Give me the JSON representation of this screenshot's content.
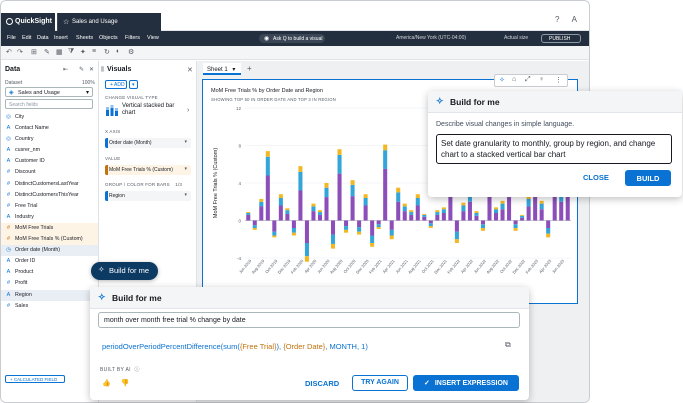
{
  "app": {
    "brand": "QuickSight",
    "analysis_tab": "Sales and Usage",
    "topbar_icons": [
      "help-icon",
      "account-icon"
    ]
  },
  "menu": {
    "items": [
      "File",
      "Edit",
      "Data",
      "Insert",
      "Sheets",
      "Objects",
      "Filters",
      "View"
    ],
    "ask_q": "Ask Q to build a visual",
    "timezone": "America/New York (UTC-04:00)",
    "actual_size": "Actual size",
    "publish": "PUBLISH"
  },
  "data_panel": {
    "title": "Data",
    "dataset_label": "Dataset",
    "dataset_pct": "100%",
    "dataset": "Sales and Usage",
    "search_placeholder": "Search fields",
    "fields": [
      {
        "name": "City",
        "icon": "geo"
      },
      {
        "name": "Contact Name",
        "icon": "str"
      },
      {
        "name": "Country",
        "icon": "geo"
      },
      {
        "name": "cusrer_nm",
        "icon": "str"
      },
      {
        "name": "Customer ID",
        "icon": "str"
      },
      {
        "name": "Discount",
        "icon": "num"
      },
      {
        "name": "DistinctCustomersLastYear",
        "icon": "num"
      },
      {
        "name": "DistinctCustomersThisYear",
        "icon": "num"
      },
      {
        "name": "Free Trial",
        "icon": "num"
      },
      {
        "name": "Industry",
        "icon": "str"
      },
      {
        "name": "MoM Free Trials",
        "icon": "calc",
        "highlight": true
      },
      {
        "name": "MoM Free Trials % (Custom)",
        "icon": "calc",
        "highlight": true
      },
      {
        "name": "Order date (Month)",
        "icon": "date",
        "selected": true
      },
      {
        "name": "Order ID",
        "icon": "str"
      },
      {
        "name": "Product",
        "icon": "str"
      },
      {
        "name": "Profit",
        "icon": "num"
      },
      {
        "name": "Region",
        "icon": "str",
        "selected": true
      },
      {
        "name": "Sales",
        "icon": "num"
      }
    ],
    "add_calc": "+ CALCULATED FIELD"
  },
  "visuals_panel": {
    "title": "Visuals",
    "add": "+ ADD",
    "change_type_label": "CHANGE VISUAL TYPE",
    "visual_type": "Vertical stacked bar chart",
    "x_axis_label": "X AXIS",
    "x_axis_value": "Order date (Month)",
    "value_label": "VALUE",
    "value_value": "MoM Free Trials % (Custom)",
    "group_label": "GROUP / COLOR FOR BARS",
    "group_count": "1/3",
    "group_value": "Region"
  },
  "canvas": {
    "sheet_tab": "Sheet 1",
    "visual_title": "MoM Free Trials % by Order Date and Region",
    "visual_subtitle": "SHOWING TOP 50 IN ORDER DATE AND TOP 3 IN REGION"
  },
  "chart_data": {
    "type": "bar",
    "stacked": true,
    "ylabel": "MoM Free Trials % (Custom)",
    "ylim": [
      -4,
      12
    ],
    "yticks": [
      -4,
      0,
      4,
      8,
      12
    ],
    "x_tick_labels": [
      "Jun 2019",
      "Aug 2019",
      "Oct 2019",
      "Dec 2019",
      "Feb 2020",
      "Apr 2020",
      "Jun 2020",
      "Aug 2020",
      "Oct 2020",
      "Dec 2020",
      "Feb 2021",
      "Apr 2021",
      "Jun 2021",
      "Aug 2021",
      "Oct 2021",
      "Dec 2021",
      "Feb 2022",
      "Apr 2022",
      "Jun 2022",
      "Aug 2022",
      "Oct 2022",
      "Dec 2022",
      "Feb 2023",
      "Apr 2023",
      "Jun 2023"
    ],
    "series": [
      {
        "color": "#8c4fb9",
        "values": [
          0.6,
          -0.5,
          1.5,
          4.8,
          -1.2,
          1.6,
          0.7,
          -0.8,
          3.2,
          -2.4,
          1.0,
          0.6,
          2.5,
          -1.5,
          5.0,
          -0.6,
          2.6,
          -0.7,
          1.6,
          -1.6,
          -0.4,
          5.5,
          -1.0,
          2.0,
          1.0,
          0.6,
          1.6,
          0.4,
          -0.3,
          0.6,
          0.8,
          6.2,
          -1.2,
          1.0,
          2.0,
          0.5,
          -0.4,
          5.6,
          0.8,
          1.2,
          2.5,
          -0.4,
          0.3,
          1.5,
          3.6,
          1.2,
          -0.8,
          8.8,
          2.0,
          3.0
        ]
      },
      {
        "color": "#33a5d8",
        "values": [
          0.2,
          -0.3,
          0.5,
          2.0,
          -0.4,
          0.8,
          0.4,
          -0.5,
          2.0,
          -1.4,
          0.5,
          0.3,
          1.0,
          -1.0,
          2.0,
          -0.4,
          1.2,
          -0.5,
          0.8,
          -0.8,
          -0.3,
          2.0,
          -0.6,
          1.0,
          0.5,
          0.3,
          0.8,
          0.2,
          -0.3,
          0.3,
          0.4,
          2.0,
          -0.8,
          0.6,
          1.0,
          0.3,
          -0.4,
          2.2,
          0.4,
          0.6,
          1.2,
          -0.4,
          0.2,
          0.8,
          1.4,
          0.6,
          -0.6,
          2.0,
          1.0,
          1.2
        ]
      },
      {
        "color": "#f2b823",
        "values": [
          0.1,
          -0.2,
          0.3,
          0.6,
          -0.2,
          0.4,
          0.2,
          -0.3,
          0.6,
          -0.6,
          0.3,
          0.2,
          0.5,
          -0.5,
          0.6,
          -0.3,
          0.5,
          -0.3,
          0.4,
          -0.4,
          -0.2,
          0.6,
          -0.4,
          0.5,
          0.3,
          0.2,
          0.4,
          0.1,
          -0.2,
          0.2,
          0.2,
          0.6,
          -0.4,
          0.3,
          0.5,
          0.2,
          -0.3,
          0.6,
          0.2,
          0.3,
          0.5,
          -0.3,
          0.1,
          0.4,
          0.6,
          0.3,
          -0.4,
          0.6,
          0.5,
          0.5
        ]
      }
    ]
  },
  "build_for_me_top": {
    "title": "Build for me",
    "description": "Describe visual changes in simple language.",
    "prompt": "Set date granularity to monthly, group by region, and change chart to a stacked vertical bar chart",
    "close": "CLOSE",
    "build": "BUILD"
  },
  "build_pill": "Build for me",
  "build_for_me_bottom": {
    "title": "Build for me",
    "input": "month over month free trial % change by date",
    "expr_func": "periodOverPeriodPercentDifference(sum(",
    "expr_field1": "{Free Trial}",
    "expr_mid": "), ",
    "expr_field2": "{Order Date}",
    "expr_tail": ", MONTH, 1)",
    "built_by": "BUILT BY AI",
    "discard": "DISCARD",
    "try_again": "TRY AGAIN",
    "insert": "INSERT EXPRESSION"
  }
}
